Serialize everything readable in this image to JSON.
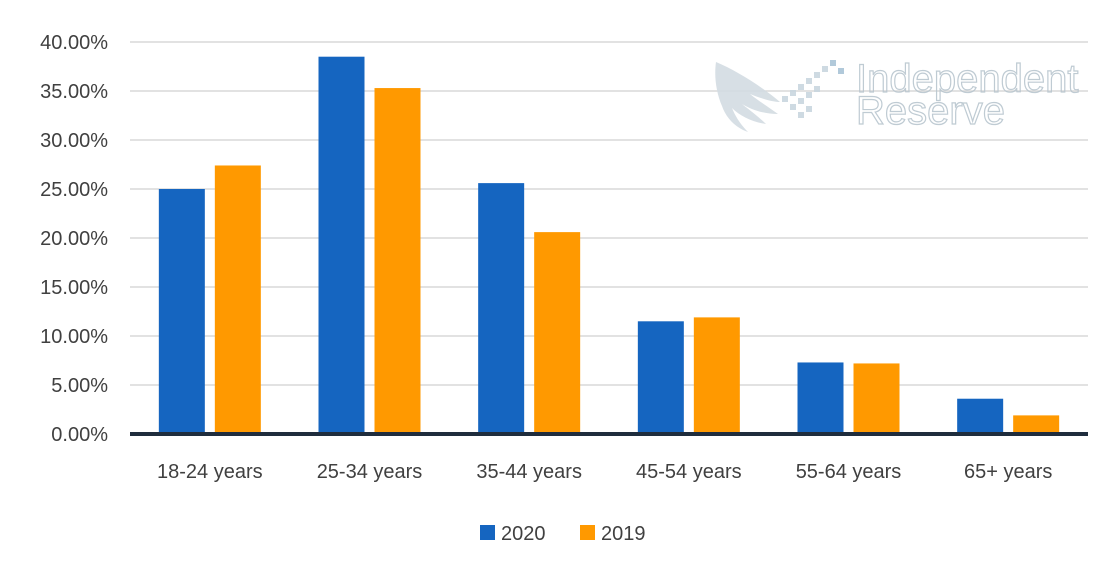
{
  "chart_data": {
    "type": "bar",
    "title": "",
    "xlabel": "",
    "ylabel": "",
    "categories": [
      "18-24 years",
      "25-34 years",
      "35-44 years",
      "45-54 years",
      "55-64 years",
      "65+ years"
    ],
    "series": [
      {
        "name": "2020",
        "color": "#1565c0",
        "values": [
          25.0,
          38.5,
          25.6,
          11.5,
          7.3,
          3.6
        ]
      },
      {
        "name": "2019",
        "color": "#ff9900",
        "values": [
          27.4,
          35.3,
          20.6,
          11.9,
          7.2,
          1.9
        ]
      }
    ],
    "ylim": [
      0,
      40
    ],
    "yticks": [
      "0.00%",
      "5.00%",
      "10.00%",
      "15.00%",
      "20.00%",
      "25.00%",
      "30.00%",
      "35.00%",
      "40.00%"
    ],
    "grid": true,
    "legend_position": "bottom"
  },
  "watermark": {
    "line1": "Independent",
    "line2": "Reserve"
  }
}
